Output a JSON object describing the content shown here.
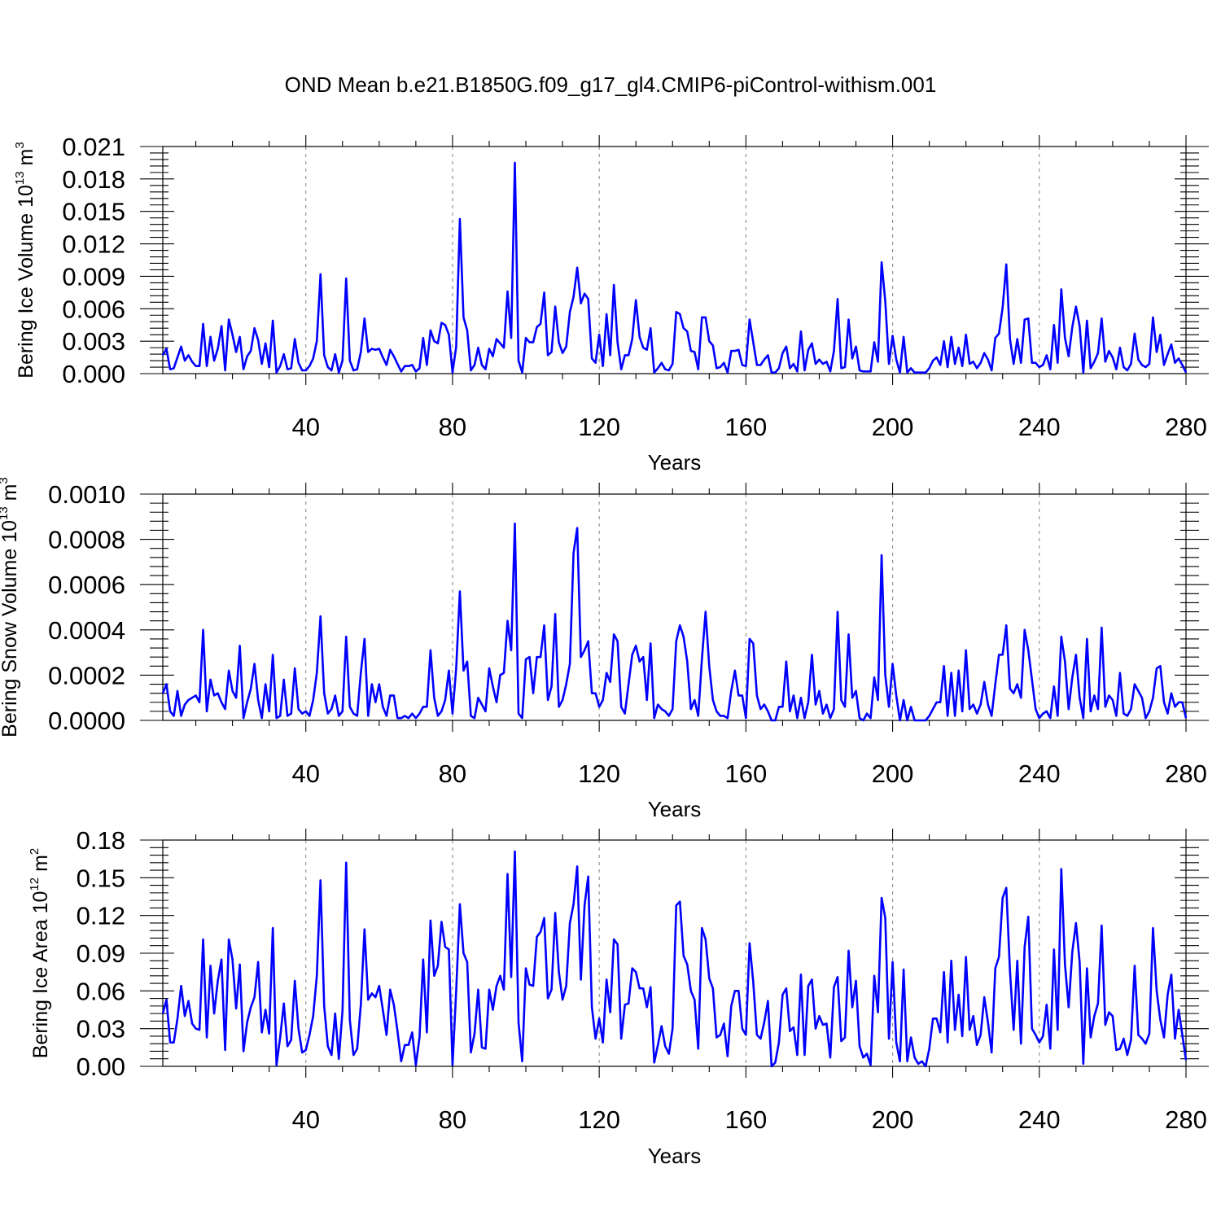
{
  "title": "OND Mean b.e21.B1850G.f09_g17_gl4.CMIP6-piControl-withism.001",
  "colors": {
    "line": "#0000ff",
    "grid": "#8c8c8c",
    "axis": "#000000",
    "background": "#ffffff"
  },
  "chart_data": [
    {
      "type": "line",
      "ylabel": {
        "main": "Bering Ice Volume 10",
        "sup": "13",
        "unit": " m",
        "unit_sup": "3"
      },
      "xlabel": "Years",
      "xlim": [
        1,
        280
      ],
      "ylim": [
        0,
        0.021
      ],
      "yticks": [
        "0.000",
        "0.003",
        "0.006",
        "0.009",
        "0.012",
        "0.015",
        "0.018",
        "0.021"
      ],
      "xticks": [
        "40",
        "80",
        "120",
        "160",
        "200",
        "240",
        "280"
      ],
      "grid": "dashed vertical at 40-year intervals",
      "series": [
        {
          "start_year": 1,
          "values": [
            0.0017,
            0.0023,
            0.0004,
            0.0005,
            0.0015,
            0.0025,
            0.0012,
            0.0017,
            0.0011,
            0.0007,
            0.0007,
            0.0046,
            0.0007,
            0.0034,
            0.0012,
            0.0023,
            0.0044,
            0.0003,
            0.005,
            0.0036,
            0.002,
            0.0034,
            0.0004,
            0.0016,
            0.0021,
            0.0042,
            0.0031,
            0.0009,
            0.0028,
            0.0006,
            0.0049,
            0.0001,
            0.0007,
            0.0018,
            0.0004,
            0.0005,
            0.0032,
            0.001,
            0.0003,
            0.0003,
            0.0007,
            0.0014,
            0.003,
            0.0092,
            0.0017,
            0.0006,
            0.0003,
            0.0018,
            0.0001,
            0.0012,
            0.0088,
            0.0012,
            0.0003,
            0.0004,
            0.002,
            0.0051,
            0.002,
            0.0023,
            0.0022,
            0.0023,
            0.0015,
            0.0008,
            0.0022,
            0.0016,
            0.0009,
            0.0002,
            0.0007,
            0.0007,
            0.0008,
            0.0002,
            0.0005,
            0.0033,
            0.0008,
            0.004,
            0.003,
            0.0028,
            0.0047,
            0.0045,
            0.0036,
            0.0001,
            0.0025,
            0.0143,
            0.0052,
            0.004,
            0.0003,
            0.0008,
            0.0024,
            0.0008,
            0.0004,
            0.0023,
            0.0016,
            0.0032,
            0.0028,
            0.0024,
            0.0076,
            0.0033,
            0.0195,
            0.0012,
            0.0001,
            0.0033,
            0.0029,
            0.0029,
            0.0043,
            0.0046,
            0.0075,
            0.0017,
            0.002,
            0.0062,
            0.0029,
            0.0019,
            0.0025,
            0.0057,
            0.0071,
            0.0098,
            0.0065,
            0.0074,
            0.0069,
            0.0014,
            0.001,
            0.0036,
            0.0007,
            0.0055,
            0.0017,
            0.0082,
            0.0029,
            0.0004,
            0.0017,
            0.0017,
            0.0032,
            0.0068,
            0.0034,
            0.0024,
            0.0022,
            0.0042,
            0.0001,
            0.0005,
            0.001,
            0.0004,
            0.0003,
            0.0009,
            0.0057,
            0.0055,
            0.0042,
            0.0039,
            0.0021,
            0.002,
            0.0004,
            0.0052,
            0.0052,
            0.003,
            0.0026,
            0.0005,
            0.0006,
            0.001,
            0.0001,
            0.0021,
            0.0021,
            0.0022,
            0.0008,
            0.0007,
            0.005,
            0.0029,
            0.0008,
            0.0008,
            0.0013,
            0.0017,
            0.0001,
            0.0001,
            0.0005,
            0.0019,
            0.0025,
            0.0005,
            0.0009,
            0.0002,
            0.0039,
            0.0003,
            0.0022,
            0.0028,
            0.0009,
            0.0013,
            0.0009,
            0.0011,
            0.0002,
            0.0021,
            0.0069,
            0.0005,
            0.0006,
            0.005,
            0.0014,
            0.0025,
            0.0003,
            0.0002,
            0.0002,
            0.0002,
            0.0029,
            0.0011,
            0.0103,
            0.0067,
            0.0009,
            0.0035,
            0.0013,
            0.0001,
            0.0034,
            0.0001,
            0.0005,
            0.0001,
            0.0001,
            0.0001,
            0.0001,
            0.0005,
            0.0012,
            0.0015,
            0.0008,
            0.003,
            0.0006,
            0.0034,
            0.0009,
            0.0024,
            0.0007,
            0.0036,
            0.0009,
            0.0011,
            0.0005,
            0.001,
            0.0019,
            0.0013,
            0.0003,
            0.0033,
            0.0037,
            0.0061,
            0.0101,
            0.0032,
            0.0009,
            0.0032,
            0.001,
            0.005,
            0.0051,
            0.001,
            0.001,
            0.0006,
            0.0008,
            0.0017,
            0.0004,
            0.0045,
            0.001,
            0.0078,
            0.0033,
            0.0016,
            0.0043,
            0.0062,
            0.0044,
            0.0001,
            0.0049,
            0.0005,
            0.0011,
            0.0019,
            0.0051,
            0.0011,
            0.0021,
            0.0015,
            0.0004,
            0.0024,
            0.0006,
            0.0003,
            0.0009,
            0.0037,
            0.0013,
            0.0008,
            0.0006,
            0.0009,
            0.0052,
            0.002,
            0.0036,
            0.0008,
            0.0018,
            0.0027,
            0.001,
            0.0014,
            0.0008,
            0.0001
          ]
        }
      ]
    },
    {
      "type": "line",
      "ylabel": {
        "main": "Bering Snow Volume 10",
        "sup": "13",
        "unit": " m",
        "unit_sup": "3"
      },
      "xlabel": "Years",
      "xlim": [
        1,
        280
      ],
      "ylim": [
        0,
        0.001
      ],
      "yticks": [
        "0.0000",
        "0.0002",
        "0.0004",
        "0.0006",
        "0.0008",
        "0.0010"
      ],
      "xticks": [
        "40",
        "80",
        "120",
        "160",
        "200",
        "240",
        "280"
      ],
      "grid": "dashed vertical at 40-year intervals",
      "series": [
        {
          "start_year": 1,
          "values": [
            0.00012,
            0.00016,
            4e-05,
            2e-05,
            0.00013,
            2e-05,
            7e-05,
            9e-05,
            0.0001,
            0.00011,
            8e-05,
            0.0004,
            4e-05,
            0.00018,
            0.00011,
            0.00012,
            8e-05,
            5e-05,
            0.00022,
            0.00013,
            0.0001,
            0.00033,
            1e-05,
            8e-05,
            0.00014,
            0.00025,
            9e-05,
            1e-05,
            0.00016,
            4e-05,
            0.00029,
            1e-05,
            2e-05,
            0.00018,
            2e-05,
            3e-05,
            0.00023,
            5e-05,
            3e-05,
            4e-05,
            2e-05,
            9e-05,
            0.00021,
            0.00046,
            0.00012,
            3e-05,
            5e-05,
            0.00011,
            2e-05,
            4e-05,
            0.00037,
            6e-05,
            3e-05,
            2e-05,
            0.00021,
            0.00036,
            2e-05,
            0.00016,
            8e-05,
            0.00016,
            6e-05,
            2e-05,
            0.00011,
            0.00011,
            1e-05,
            1e-05,
            2e-05,
            1e-05,
            3e-05,
            1e-05,
            3e-05,
            6e-05,
            6e-05,
            0.00031,
            0.0001,
            2e-05,
            4e-05,
            9e-05,
            0.00022,
            3e-05,
            0.00023,
            0.00057,
            0.00022,
            0.00026,
            2e-05,
            1e-05,
            0.0001,
            7e-05,
            4e-05,
            0.00023,
            0.00015,
            8e-05,
            0.0002,
            0.00021,
            0.00044,
            0.00031,
            0.00087,
            3e-05,
            1e-05,
            0.00027,
            0.00028,
            0.00012,
            0.00028,
            0.00028,
            0.00042,
            9e-05,
            0.00015,
            0.00047,
            6e-05,
            9e-05,
            0.00016,
            0.00025,
            0.00074,
            0.00085,
            0.00028,
            0.00031,
            0.00035,
            0.00012,
            0.00012,
            6e-05,
            9e-05,
            0.00021,
            0.00017,
            0.00038,
            0.00035,
            6e-05,
            3e-05,
            0.00016,
            0.00029,
            0.00033,
            0.00026,
            0.00028,
            9e-05,
            0.00034,
            1e-05,
            7e-05,
            5e-05,
            4e-05,
            2e-05,
            5e-05,
            0.00035,
            0.00042,
            0.00037,
            0.00026,
            5e-05,
            9e-05,
            2e-05,
            0.00027,
            0.00048,
            0.00024,
            9e-05,
            4e-05,
            2e-05,
            2e-05,
            1e-05,
            0.00013,
            0.00022,
            0.00011,
            0.00011,
            1e-05,
            0.00036,
            0.00034,
            0.00011,
            5e-05,
            7e-05,
            4e-05,
            0.0,
            0.0,
            6e-05,
            6e-05,
            0.00026,
            4e-05,
            0.00011,
            1e-05,
            0.0001,
            1e-05,
            8e-05,
            0.00029,
            7e-05,
            0.00013,
            3e-05,
            7e-05,
            1e-05,
            5e-05,
            0.00048,
            9e-05,
            6e-05,
            0.00038,
            0.0001,
            0.00013,
            1e-05,
            0.0,
            3e-05,
            1e-05,
            0.00019,
            9e-05,
            0.00073,
            0.0002,
            6e-05,
            0.00025,
            0.00011,
            0.0,
            9e-05,
            0.0,
            6e-05,
            0.0,
            0.0,
            0.0,
            0.0,
            2e-05,
            5e-05,
            8e-05,
            8e-05,
            0.00024,
            2e-05,
            0.00021,
            2e-05,
            0.00022,
            4e-05,
            0.00031,
            5e-05,
            7e-05,
            3e-05,
            7e-05,
            0.00017,
            7e-05,
            2e-05,
            0.00016,
            0.00029,
            0.00029,
            0.00042,
            0.00014,
            0.00012,
            0.00016,
            0.0001,
            0.0004,
            0.00031,
            0.00018,
            5e-05,
            1e-05,
            3e-05,
            4e-05,
            1e-05,
            0.00015,
            2e-05,
            0.00037,
            0.00026,
            5e-05,
            0.00019,
            0.00029,
            0.0001,
            1e-05,
            0.00036,
            4e-05,
            0.00011,
            5e-05,
            0.00041,
            6e-05,
            0.00011,
            9e-05,
            2e-05,
            0.00021,
            3e-05,
            2e-05,
            5e-05,
            0.00016,
            0.00013,
            0.0001,
            1e-05,
            4e-05,
            0.0001,
            0.00023,
            0.00024,
            8e-05,
            3e-05,
            0.00012,
            6e-05,
            8e-05,
            8e-05,
            1e-05
          ]
        }
      ]
    },
    {
      "type": "line",
      "ylabel": {
        "main": "Bering Ice Area 10",
        "sup": "12",
        "unit": " m",
        "unit_sup": "2"
      },
      "xlabel": "Years",
      "xlim": [
        1,
        280
      ],
      "ylim": [
        0,
        0.18
      ],
      "yticks": [
        "0.00",
        "0.03",
        "0.06",
        "0.09",
        "0.12",
        "0.15",
        "0.18"
      ],
      "xticks": [
        "40",
        "80",
        "120",
        "160",
        "200",
        "240",
        "280"
      ],
      "grid": "dashed vertical at 40-year intervals",
      "series": [
        {
          "start_year": 1,
          "values": [
            0.042,
            0.053,
            0.019,
            0.019,
            0.038,
            0.064,
            0.04,
            0.052,
            0.034,
            0.03,
            0.029,
            0.101,
            0.023,
            0.08,
            0.042,
            0.068,
            0.085,
            0.013,
            0.101,
            0.085,
            0.046,
            0.081,
            0.012,
            0.035,
            0.047,
            0.055,
            0.083,
            0.027,
            0.045,
            0.026,
            0.11,
            0.001,
            0.023,
            0.05,
            0.016,
            0.021,
            0.068,
            0.03,
            0.011,
            0.013,
            0.025,
            0.04,
            0.072,
            0.148,
            0.048,
            0.016,
            0.009,
            0.042,
            0.006,
            0.044,
            0.162,
            0.037,
            0.009,
            0.014,
            0.049,
            0.109,
            0.053,
            0.058,
            0.055,
            0.064,
            0.045,
            0.025,
            0.061,
            0.049,
            0.028,
            0.004,
            0.017,
            0.017,
            0.027,
            0.001,
            0.023,
            0.085,
            0.027,
            0.116,
            0.072,
            0.08,
            0.115,
            0.095,
            0.093,
            0.001,
            0.06,
            0.129,
            0.09,
            0.083,
            0.011,
            0.026,
            0.061,
            0.015,
            0.014,
            0.061,
            0.045,
            0.064,
            0.072,
            0.061,
            0.153,
            0.071,
            0.171,
            0.035,
            0.004,
            0.078,
            0.065,
            0.064,
            0.103,
            0.107,
            0.118,
            0.054,
            0.061,
            0.122,
            0.075,
            0.053,
            0.064,
            0.114,
            0.129,
            0.159,
            0.069,
            0.128,
            0.151,
            0.047,
            0.022,
            0.038,
            0.019,
            0.069,
            0.043,
            0.101,
            0.097,
            0.022,
            0.049,
            0.05,
            0.078,
            0.075,
            0.062,
            0.062,
            0.047,
            0.063,
            0.003,
            0.017,
            0.032,
            0.016,
            0.01,
            0.03,
            0.128,
            0.131,
            0.088,
            0.081,
            0.06,
            0.053,
            0.014,
            0.11,
            0.101,
            0.07,
            0.062,
            0.023,
            0.025,
            0.034,
            0.008,
            0.048,
            0.06,
            0.06,
            0.03,
            0.025,
            0.098,
            0.067,
            0.025,
            0.022,
            0.035,
            0.052,
            0.0,
            0.003,
            0.019,
            0.057,
            0.062,
            0.028,
            0.031,
            0.009,
            0.073,
            0.009,
            0.064,
            0.069,
            0.03,
            0.04,
            0.033,
            0.034,
            0.007,
            0.063,
            0.071,
            0.02,
            0.023,
            0.092,
            0.047,
            0.068,
            0.016,
            0.007,
            0.01,
            0.001,
            0.072,
            0.043,
            0.134,
            0.118,
            0.022,
            0.083,
            0.019,
            0.004,
            0.077,
            0.004,
            0.023,
            0.007,
            0.002,
            0.004,
            0.0,
            0.014,
            0.038,
            0.038,
            0.027,
            0.075,
            0.019,
            0.084,
            0.029,
            0.057,
            0.024,
            0.087,
            0.029,
            0.04,
            0.017,
            0.025,
            0.055,
            0.035,
            0.011,
            0.078,
            0.087,
            0.134,
            0.142,
            0.076,
            0.029,
            0.084,
            0.018,
            0.095,
            0.119,
            0.03,
            0.025,
            0.019,
            0.024,
            0.049,
            0.014,
            0.093,
            0.029,
            0.157,
            0.081,
            0.047,
            0.091,
            0.114,
            0.083,
            0.002,
            0.078,
            0.023,
            0.04,
            0.05,
            0.112,
            0.033,
            0.043,
            0.04,
            0.013,
            0.014,
            0.022,
            0.009,
            0.021,
            0.08,
            0.025,
            0.022,
            0.018,
            0.026,
            0.11,
            0.06,
            0.037,
            0.023,
            0.057,
            0.073,
            0.022,
            0.045,
            0.025,
            0.005
          ]
        }
      ]
    }
  ]
}
